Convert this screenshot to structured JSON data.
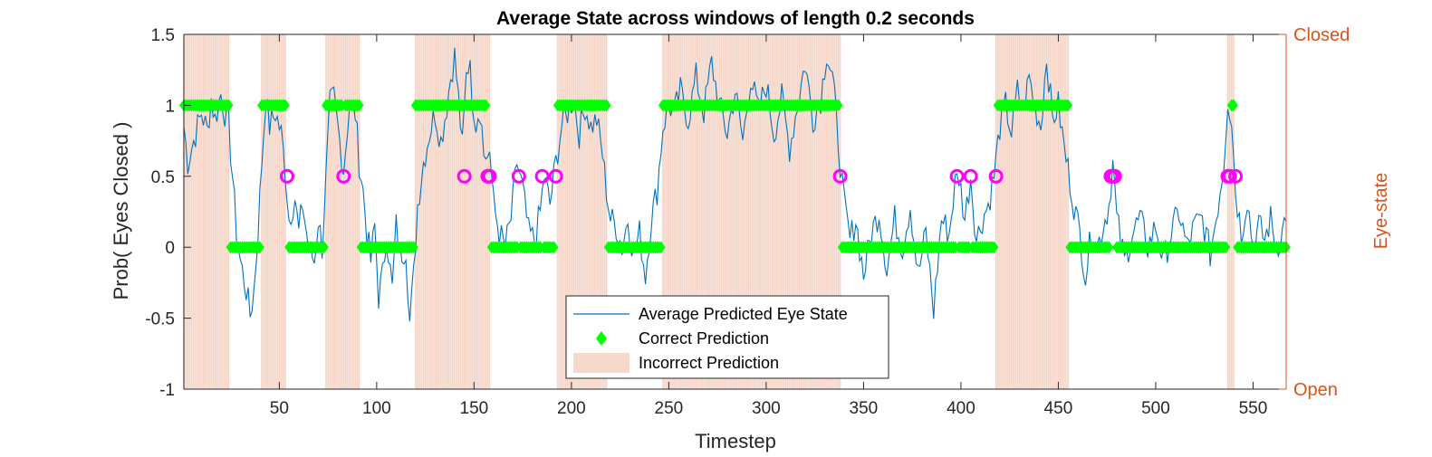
{
  "chart_data": {
    "type": "line",
    "title": "Average State across windows of length 0.2 seconds",
    "xlabel": "Timestep",
    "ylabel": "Prob( Eyes Closed )",
    "ylabel_right": "Eye-state",
    "right_ticks": [
      "Open",
      "Closed"
    ],
    "xlim": [
      1,
      567
    ],
    "ylim": [
      -1,
      1.5
    ],
    "xticks": [
      50,
      100,
      150,
      200,
      250,
      300,
      350,
      400,
      450,
      500,
      550
    ],
    "yticks": [
      -1,
      -0.5,
      0,
      0.5,
      1,
      1.5
    ],
    "grid": false,
    "legend_position": "bottom-center",
    "colors": {
      "line": "#0072BD",
      "correct": "#00FF00",
      "incorrect_marker": "#FF00FF",
      "shade": "#F7D9CC",
      "right_axis": "#D95319"
    },
    "legend": [
      {
        "label": "Average Predicted Eye State",
        "kind": "line"
      },
      {
        "label": "Correct Prediction",
        "kind": "diamond"
      },
      {
        "label": "Incorrect Prediction",
        "kind": "patch"
      }
    ],
    "closed_intervals": [
      [
        1,
        24
      ],
      [
        41,
        53
      ],
      [
        74,
        91
      ],
      [
        120,
        158
      ],
      [
        193,
        218
      ],
      [
        247,
        338
      ],
      [
        418,
        455
      ],
      [
        537,
        540
      ]
    ],
    "incorrect_timesteps": [
      54,
      83,
      145,
      157,
      158,
      173,
      185,
      192,
      338,
      398,
      405,
      418,
      477,
      478,
      479,
      537,
      538,
      541
    ],
    "average_curve_keypoints": [
      [
        1,
        0.85
      ],
      [
        3,
        0.6
      ],
      [
        6,
        0.75
      ],
      [
        10,
        0.95
      ],
      [
        13,
        0.82
      ],
      [
        15,
        1.05
      ],
      [
        17,
        0.9
      ],
      [
        20,
        1.08
      ],
      [
        22,
        0.95
      ],
      [
        24,
        0.85
      ],
      [
        26,
        0.5
      ],
      [
        28,
        0.1
      ],
      [
        30,
        -0.1
      ],
      [
        33,
        -0.3
      ],
      [
        35,
        -0.48
      ],
      [
        37,
        -0.3
      ],
      [
        39,
        0.1
      ],
      [
        41,
        0.6
      ],
      [
        43,
        1.05
      ],
      [
        45,
        0.85
      ],
      [
        48,
        0.95
      ],
      [
        51,
        0.8
      ],
      [
        53,
        0.55
      ],
      [
        55,
        0.2
      ],
      [
        58,
        0.35
      ],
      [
        60,
        0.1
      ],
      [
        62,
        0.3
      ],
      [
        65,
        0.0
      ],
      [
        68,
        -0.1
      ],
      [
        70,
        0.2
      ],
      [
        72,
        0.0
      ],
      [
        74,
        0.5
      ],
      [
        76,
        1.0
      ],
      [
        78,
        1.05
      ],
      [
        80,
        0.85
      ],
      [
        83,
        0.55
      ],
      [
        86,
        1.0
      ],
      [
        89,
        0.95
      ],
      [
        91,
        0.6
      ],
      [
        93,
        0.4
      ],
      [
        95,
        0.1
      ],
      [
        97,
        -0.1
      ],
      [
        99,
        0.15
      ],
      [
        101,
        -0.35
      ],
      [
        103,
        -0.2
      ],
      [
        105,
        0.1
      ],
      [
        108,
        -0.3
      ],
      [
        110,
        0.15
      ],
      [
        112,
        -0.05
      ],
      [
        115,
        0.0
      ],
      [
        117,
        -0.53
      ],
      [
        119,
        -0.2
      ],
      [
        121,
        0.3
      ],
      [
        124,
        0.6
      ],
      [
        127,
        0.8
      ],
      [
        130,
        0.95
      ],
      [
        133,
        0.75
      ],
      [
        136,
        1.0
      ],
      [
        138,
        1.2
      ],
      [
        140,
        1.35
      ],
      [
        142,
        1.05
      ],
      [
        144,
        0.7
      ],
      [
        146,
        1.2
      ],
      [
        148,
        1.35
      ],
      [
        150,
        0.8
      ],
      [
        152,
        1.0
      ],
      [
        154,
        0.9
      ],
      [
        156,
        0.6
      ],
      [
        158,
        0.7
      ],
      [
        160,
        0.3
      ],
      [
        163,
        0.1
      ],
      [
        166,
        0.0
      ],
      [
        169,
        0.2
      ],
      [
        172,
        0.6
      ],
      [
        175,
        0.4
      ],
      [
        178,
        0.1
      ],
      [
        181,
        0.05
      ],
      [
        184,
        0.25
      ],
      [
        186,
        0.5
      ],
      [
        189,
        0.3
      ],
      [
        192,
        0.6
      ],
      [
        195,
        0.85
      ],
      [
        198,
        0.95
      ],
      [
        201,
        1.05
      ],
      [
        204,
        0.8
      ],
      [
        207,
        1.0
      ],
      [
        210,
        0.85
      ],
      [
        213,
        0.9
      ],
      [
        216,
        0.65
      ],
      [
        218,
        0.4
      ],
      [
        220,
        0.2
      ],
      [
        223,
        0.15
      ],
      [
        226,
        0.0
      ],
      [
        229,
        0.2
      ],
      [
        232,
        -0.05
      ],
      [
        235,
        0.1
      ],
      [
        238,
        -0.2
      ],
      [
        241,
        0.2
      ],
      [
        244,
        0.4
      ],
      [
        247,
        0.85
      ],
      [
        250,
        1.0
      ],
      [
        253,
        0.95
      ],
      [
        256,
        1.1
      ],
      [
        260,
        0.9
      ],
      [
        264,
        1.2
      ],
      [
        268,
        0.95
      ],
      [
        272,
        1.3
      ],
      [
        276,
        1.0
      ],
      [
        280,
        0.8
      ],
      [
        284,
        1.1
      ],
      [
        288,
        0.75
      ],
      [
        292,
        1.2
      ],
      [
        296,
        0.95
      ],
      [
        300,
        1.15
      ],
      [
        304,
        0.8
      ],
      [
        308,
        1.05
      ],
      [
        312,
        0.7
      ],
      [
        316,
        1.0
      ],
      [
        320,
        1.3
      ],
      [
        324,
        0.9
      ],
      [
        328,
        1.05
      ],
      [
        331,
        1.38
      ],
      [
        334,
        1.2
      ],
      [
        337,
        0.75
      ],
      [
        340,
        0.3
      ],
      [
        343,
        0.05
      ],
      [
        346,
        0.2
      ],
      [
        350,
        -0.2
      ],
      [
        354,
        0.1
      ],
      [
        358,
        0.25
      ],
      [
        362,
        -0.15
      ],
      [
        366,
        0.2
      ],
      [
        370,
        0.0
      ],
      [
        374,
        0.3
      ],
      [
        378,
        -0.2
      ],
      [
        382,
        0.1
      ],
      [
        386,
        -0.45
      ],
      [
        390,
        0.2
      ],
      [
        394,
        0.1
      ],
      [
        397,
        0.45
      ],
      [
        399,
        0.5
      ],
      [
        402,
        0.2
      ],
      [
        405,
        0.5
      ],
      [
        408,
        0.05
      ],
      [
        411,
        0.2
      ],
      [
        414,
        0.3
      ],
      [
        417,
        0.5
      ],
      [
        420,
        0.85
      ],
      [
        423,
        1.0
      ],
      [
        426,
        0.8
      ],
      [
        429,
        1.1
      ],
      [
        432,
        0.95
      ],
      [
        435,
        1.2
      ],
      [
        438,
        1.0
      ],
      [
        441,
        0.85
      ],
      [
        444,
        1.35
      ],
      [
        447,
        0.9
      ],
      [
        450,
        1.0
      ],
      [
        453,
        0.7
      ],
      [
        455,
        0.55
      ],
      [
        458,
        0.3
      ],
      [
        461,
        0.1
      ],
      [
        464,
        -0.2
      ],
      [
        467,
        0.1
      ],
      [
        470,
        0.0
      ],
      [
        473,
        0.15
      ],
      [
        476,
        0.3
      ],
      [
        478,
        0.6
      ],
      [
        480,
        0.2
      ],
      [
        484,
        -0.1
      ],
      [
        488,
        0.1
      ],
      [
        492,
        0.2
      ],
      [
        496,
        0.0
      ],
      [
        500,
        0.15
      ],
      [
        504,
        -0.1
      ],
      [
        508,
        0.1
      ],
      [
        512,
        0.25
      ],
      [
        516,
        0.0
      ],
      [
        520,
        0.15
      ],
      [
        524,
        0.2
      ],
      [
        528,
        -0.05
      ],
      [
        532,
        0.3
      ],
      [
        535,
        0.6
      ],
      [
        537,
        1.05
      ],
      [
        539,
        0.9
      ],
      [
        541,
        0.4
      ],
      [
        544,
        0.1
      ],
      [
        547,
        0.35
      ],
      [
        550,
        0.0
      ],
      [
        553,
        0.15
      ],
      [
        556,
        0.05
      ],
      [
        559,
        0.2
      ],
      [
        562,
        0.0
      ],
      [
        565,
        0.1
      ],
      [
        567,
        0.25
      ]
    ]
  }
}
